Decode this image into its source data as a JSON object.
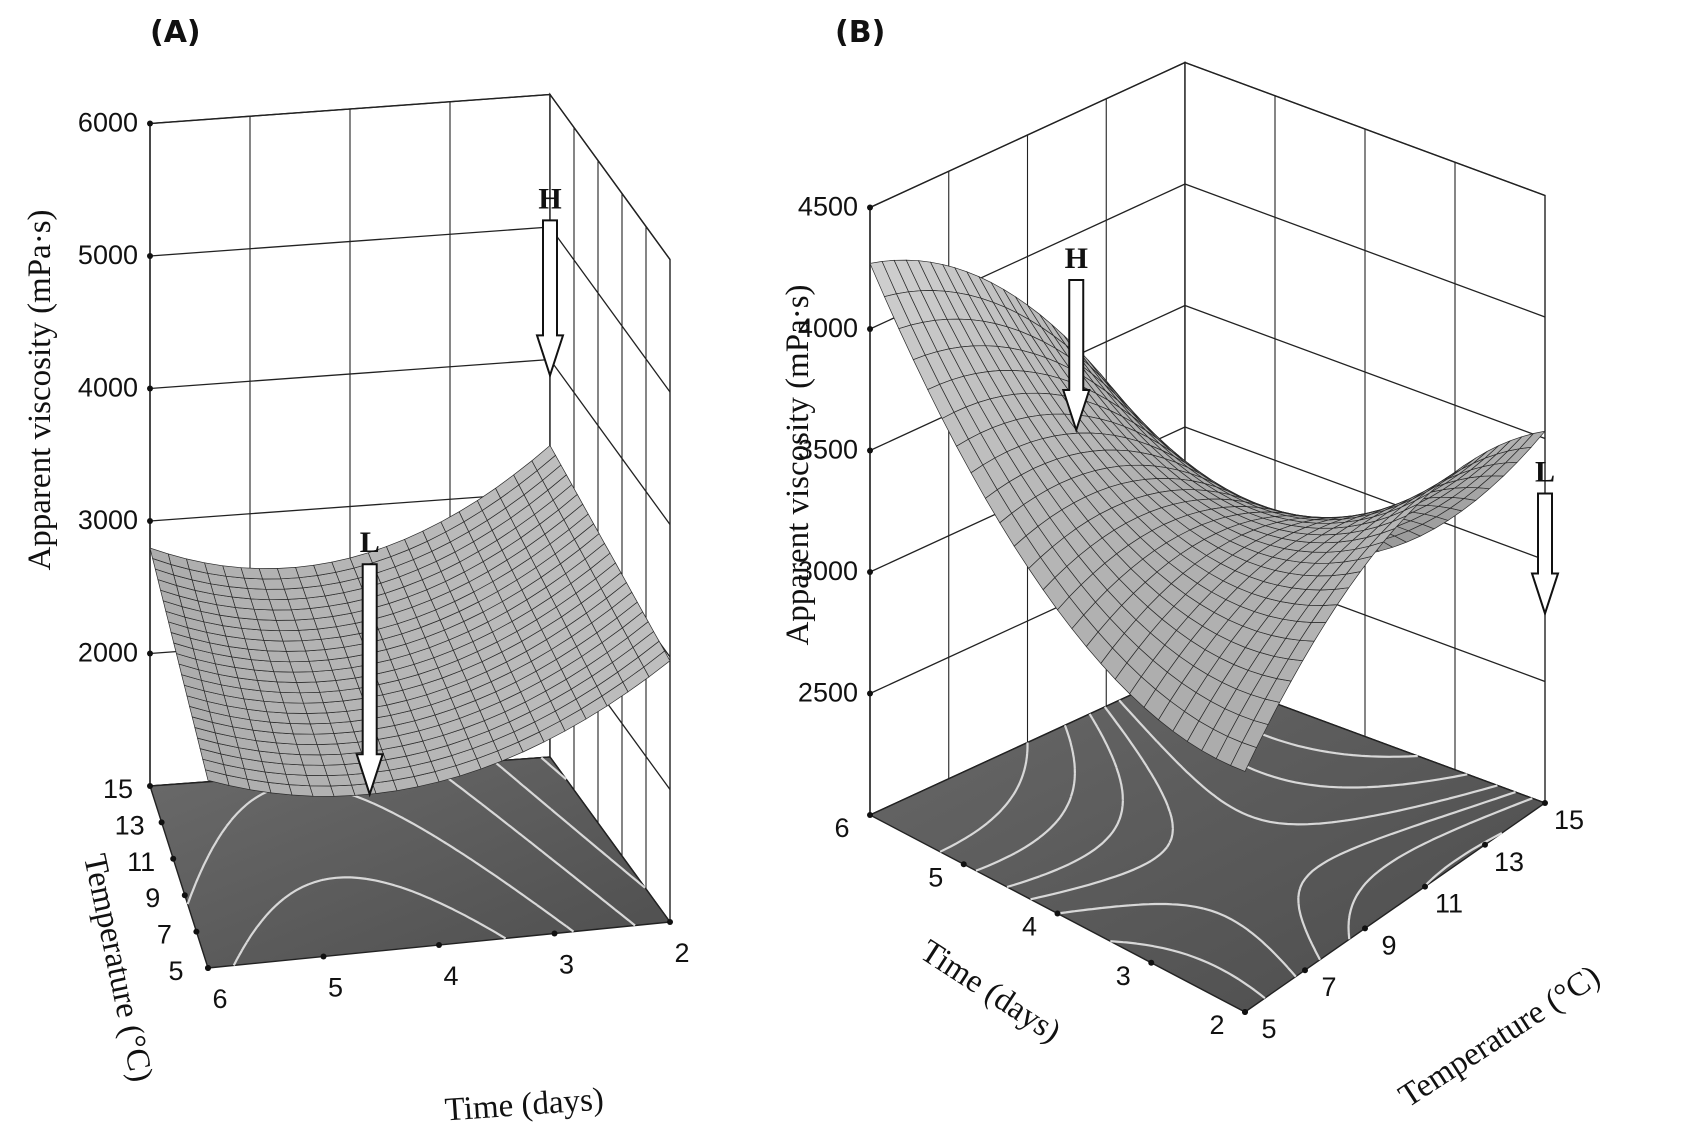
{
  "chart_data": [
    {
      "type": "surface",
      "panel": "(A)",
      "zlabel": "Apparent viscosity (mPa·s)",
      "xlabel": "Time (days)",
      "ylabel": "Temperature (°C)",
      "z_ticks": [
        "6000",
        "5000",
        "4000",
        "3000",
        "2000"
      ],
      "x_ticks": [
        "6",
        "5",
        "4",
        "3",
        "2"
      ],
      "y_ticks": [
        "15",
        "13",
        "11",
        "9",
        "7",
        "5"
      ],
      "zlim": [
        1000,
        6000
      ],
      "x_range": [
        2,
        6
      ],
      "y_range": [
        5,
        15
      ],
      "markers": [
        {
          "label": "H",
          "time": 2,
          "temperature": 15,
          "viscosity": 3880
        },
        {
          "label": "L",
          "time": 4.6,
          "temperature": 5,
          "viscosity": 2190
        }
      ],
      "grid": true
    },
    {
      "type": "surface",
      "panel": "(B)",
      "zlabel": "Apparent viscosity (mPa·s)",
      "xlabel": "Time (days)",
      "ylabel": "Temperature (°C)",
      "z_ticks": [
        "4500",
        "4000",
        "3500",
        "3000",
        "2500"
      ],
      "x_ticks": [
        "6",
        "5",
        "4",
        "3",
        "2"
      ],
      "y_ticks": [
        "5",
        "7",
        "9",
        "11",
        "13",
        "15"
      ],
      "zlim": [
        2000,
        4500
      ],
      "x_range": [
        2,
        6
      ],
      "y_range": [
        5,
        15
      ],
      "markers": [
        {
          "label": "H",
          "time": 3.8,
          "temperature": 5,
          "viscosity": 4030
        },
        {
          "label": "L",
          "time": 2,
          "temperature": 15,
          "viscosity": 2780
        }
      ],
      "grid": true
    }
  ]
}
